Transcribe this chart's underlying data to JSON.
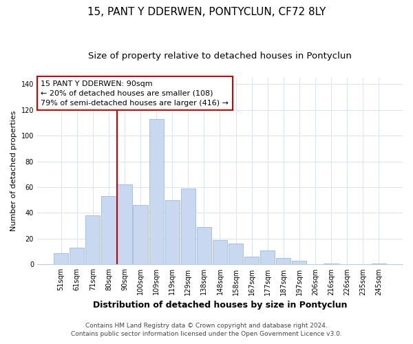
{
  "title": "15, PANT Y DDERWEN, PONTYCLUN, CF72 8LY",
  "subtitle": "Size of property relative to detached houses in Pontyclun",
  "xlabel": "Distribution of detached houses by size in Pontyclun",
  "ylabel": "Number of detached properties",
  "bar_labels": [
    "51sqm",
    "61sqm",
    "71sqm",
    "80sqm",
    "90sqm",
    "100sqm",
    "109sqm",
    "119sqm",
    "129sqm",
    "138sqm",
    "148sqm",
    "158sqm",
    "167sqm",
    "177sqm",
    "187sqm",
    "197sqm",
    "206sqm",
    "216sqm",
    "226sqm",
    "235sqm",
    "245sqm"
  ],
  "bar_values": [
    9,
    13,
    38,
    53,
    62,
    46,
    113,
    50,
    59,
    29,
    19,
    16,
    6,
    11,
    5,
    3,
    0,
    1,
    0,
    0,
    1
  ],
  "bar_color": "#c8d8f0",
  "bar_edge_color": "#a0b8d8",
  "vline_index": 4,
  "vline_color": "#cc0000",
  "annotation_line1": "15 PANT Y DDERWEN: 90sqm",
  "annotation_line2": "← 20% of detached houses are smaller (108)",
  "annotation_line3": "79% of semi-detached houses are larger (416) →",
  "annotation_box_color": "#ffffff",
  "annotation_box_edge": "#cc0000",
  "ylim": [
    0,
    145
  ],
  "yticks": [
    0,
    20,
    40,
    60,
    80,
    100,
    120,
    140
  ],
  "footer1": "Contains HM Land Registry data © Crown copyright and database right 2024.",
  "footer2": "Contains public sector information licensed under the Open Government Licence v3.0.",
  "bg_color": "#ffffff",
  "grid_color": "#d8e4f0",
  "title_fontsize": 11,
  "subtitle_fontsize": 9.5,
  "xlabel_fontsize": 9,
  "ylabel_fontsize": 8,
  "tick_fontsize": 7,
  "annotation_fontsize": 8,
  "footer_fontsize": 6.5
}
